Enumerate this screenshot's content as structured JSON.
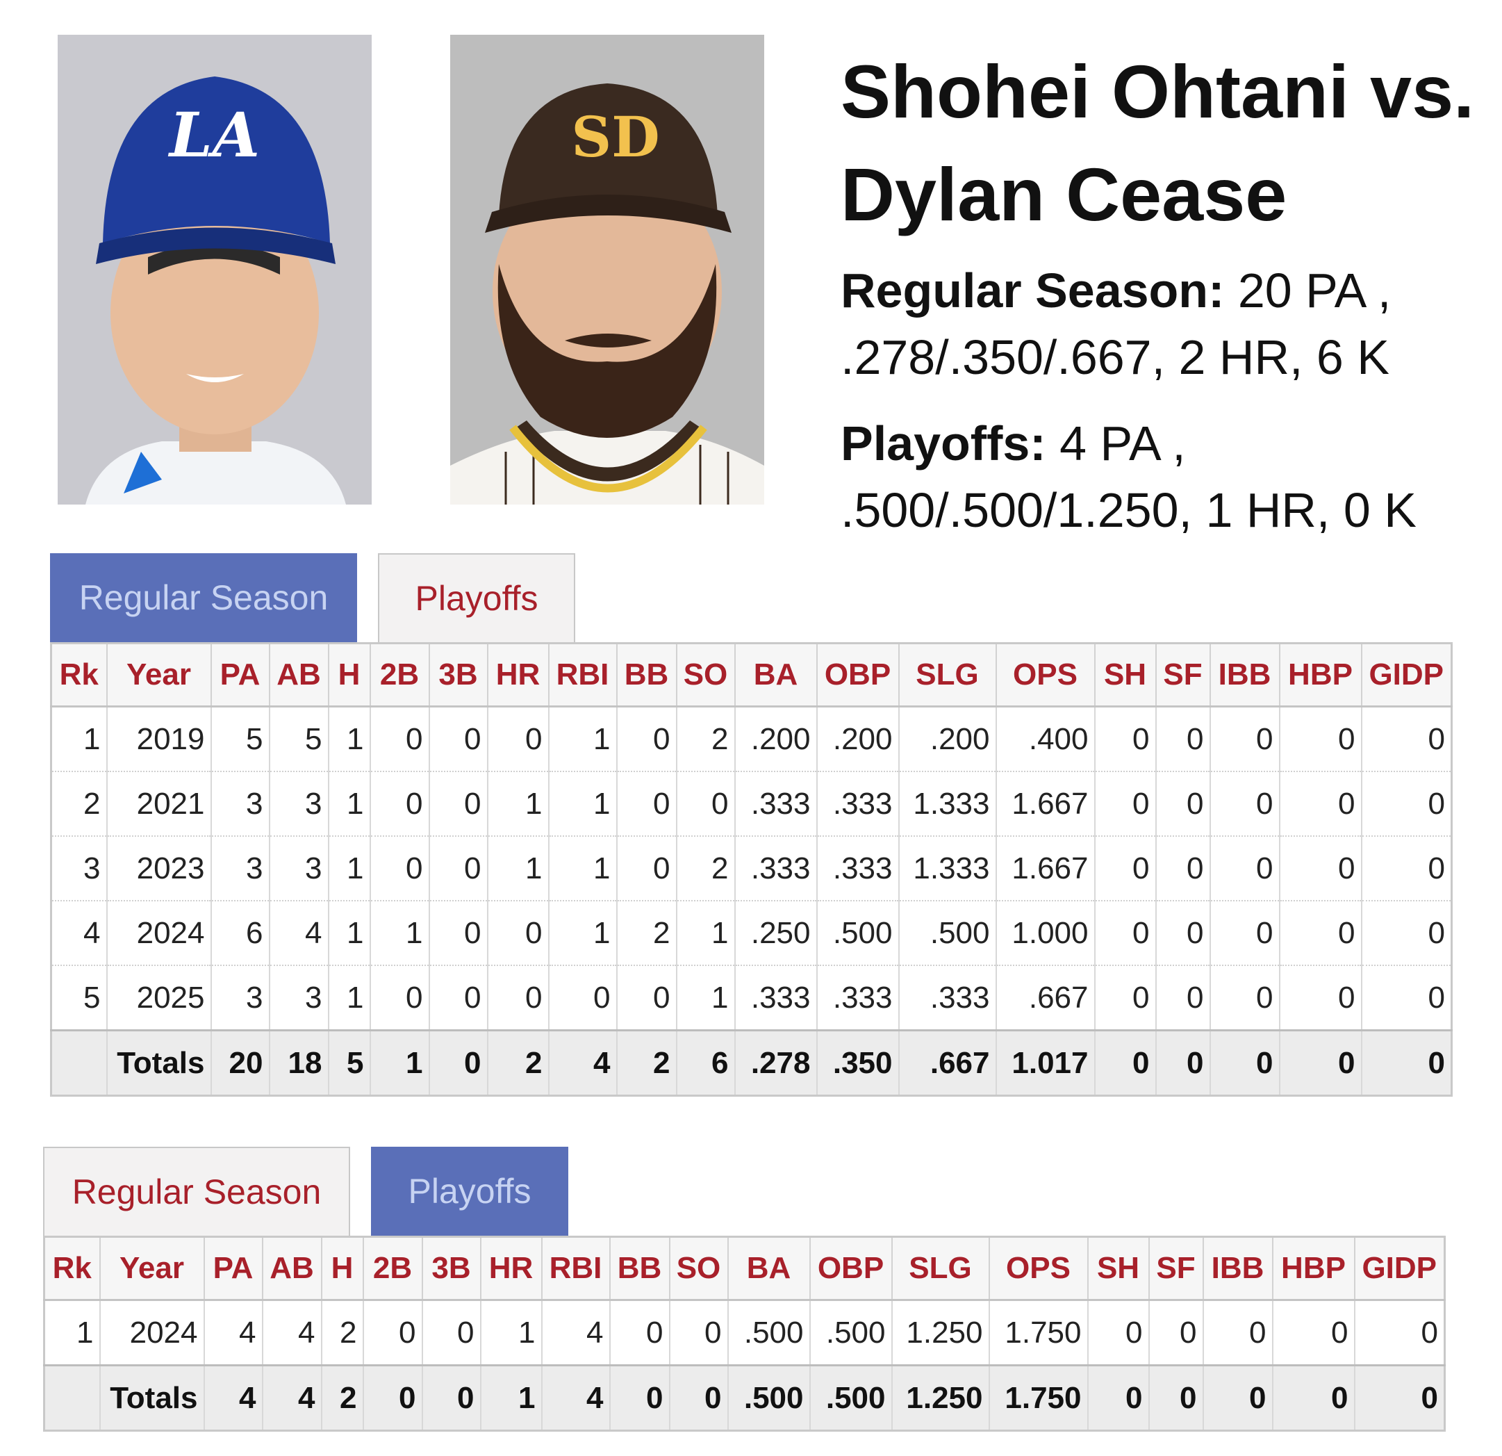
{
  "heading": "Shohei Ohtani vs. Dylan Cease",
  "summary": {
    "regular": {
      "label": "Regular Season:",
      "text": " 20 PA , .278/.350/.667, 2 HR, 6 K"
    },
    "playoffs": {
      "label": "Playoffs:",
      "text": " 4 PA , .500/.500/1.250, 1 HR, 0 K"
    }
  },
  "photos": {
    "batter": {
      "cap_logo": "LA",
      "cap_color": "#1f3d9c"
    },
    "pitcher": {
      "cap_logo": "SD",
      "cap_color": "#3a2a20",
      "logo_color": "#f2c14e"
    }
  },
  "colors": {
    "active_tab": "#5a6fb8",
    "header_text": "#a8202a"
  },
  "tabs": {
    "regular": "Regular Season",
    "playoffs": "Playoffs"
  },
  "columns": [
    "Rk",
    "Year",
    "PA",
    "AB",
    "H",
    "2B",
    "3B",
    "HR",
    "RBI",
    "BB",
    "SO",
    "BA",
    "OBP",
    "SLG",
    "OPS",
    "SH",
    "SF",
    "IBB",
    "HBP",
    "GIDP"
  ],
  "regular_season": {
    "rows": [
      [
        "1",
        "2019",
        "5",
        "5",
        "1",
        "0",
        "0",
        "0",
        "1",
        "0",
        "2",
        ".200",
        ".200",
        ".200",
        ".400",
        "0",
        "0",
        "0",
        "0",
        "0"
      ],
      [
        "2",
        "2021",
        "3",
        "3",
        "1",
        "0",
        "0",
        "1",
        "1",
        "0",
        "0",
        ".333",
        ".333",
        "1.333",
        "1.667",
        "0",
        "0",
        "0",
        "0",
        "0"
      ],
      [
        "3",
        "2023",
        "3",
        "3",
        "1",
        "0",
        "0",
        "1",
        "1",
        "0",
        "2",
        ".333",
        ".333",
        "1.333",
        "1.667",
        "0",
        "0",
        "0",
        "0",
        "0"
      ],
      [
        "4",
        "2024",
        "6",
        "4",
        "1",
        "1",
        "0",
        "0",
        "1",
        "2",
        "1",
        ".250",
        ".500",
        ".500",
        "1.000",
        "0",
        "0",
        "0",
        "0",
        "0"
      ],
      [
        "5",
        "2025",
        "3",
        "3",
        "1",
        "0",
        "0",
        "0",
        "0",
        "0",
        "1",
        ".333",
        ".333",
        ".333",
        ".667",
        "0",
        "0",
        "0",
        "0",
        "0"
      ]
    ],
    "totals": [
      "",
      "Totals",
      "20",
      "18",
      "5",
      "1",
      "0",
      "2",
      "4",
      "2",
      "6",
      ".278",
      ".350",
      ".667",
      "1.017",
      "0",
      "0",
      "0",
      "0",
      "0"
    ]
  },
  "playoffs": {
    "rows": [
      [
        "1",
        "2024",
        "4",
        "4",
        "2",
        "0",
        "0",
        "1",
        "4",
        "0",
        "0",
        ".500",
        ".500",
        "1.250",
        "1.750",
        "0",
        "0",
        "0",
        "0",
        "0"
      ]
    ],
    "totals": [
      "",
      "Totals",
      "4",
      "4",
      "2",
      "0",
      "0",
      "1",
      "4",
      "0",
      "0",
      ".500",
      ".500",
      "1.250",
      "1.750",
      "0",
      "0",
      "0",
      "0",
      "0"
    ]
  }
}
